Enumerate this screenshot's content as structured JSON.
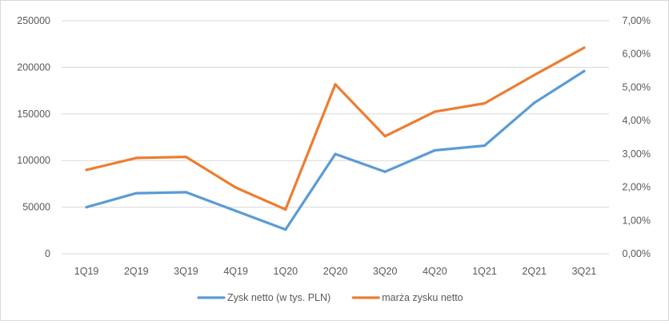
{
  "chart_data": {
    "type": "line",
    "categories": [
      "1Q19",
      "2Q19",
      "3Q19",
      "4Q19",
      "1Q20",
      "2Q20",
      "3Q20",
      "4Q20",
      "1Q21",
      "2Q21",
      "3Q21"
    ],
    "series": [
      {
        "name": "Zysk netto (w tys. PLN)",
        "axis": "left",
        "color": "#5b9bd5",
        "values": [
          50000,
          65000,
          66000,
          46000,
          26000,
          107000,
          88000,
          111000,
          116000,
          162000,
          196000
        ]
      },
      {
        "name": "marża zysku netto",
        "axis": "right",
        "color": "#ed7d31",
        "values": [
          2.52,
          2.88,
          2.91,
          1.99,
          1.33,
          5.09,
          3.53,
          4.27,
          4.52,
          5.37,
          6.19
        ]
      }
    ],
    "y_left": {
      "range": [
        0,
        250000
      ],
      "ticks": [
        0,
        50000,
        100000,
        150000,
        200000,
        250000
      ],
      "tick_labels": [
        "0",
        "50000",
        "100000",
        "150000",
        "200000",
        "250000"
      ]
    },
    "y_right": {
      "range": [
        0,
        7
      ],
      "ticks": [
        0,
        1,
        2,
        3,
        4,
        5,
        6,
        7
      ],
      "tick_labels": [
        "0,00%",
        "1,00%",
        "2,00%",
        "3,00%",
        "4,00%",
        "5,00%",
        "6,00%",
        "7,00%"
      ]
    },
    "grid": true,
    "legend_position": "bottom"
  }
}
